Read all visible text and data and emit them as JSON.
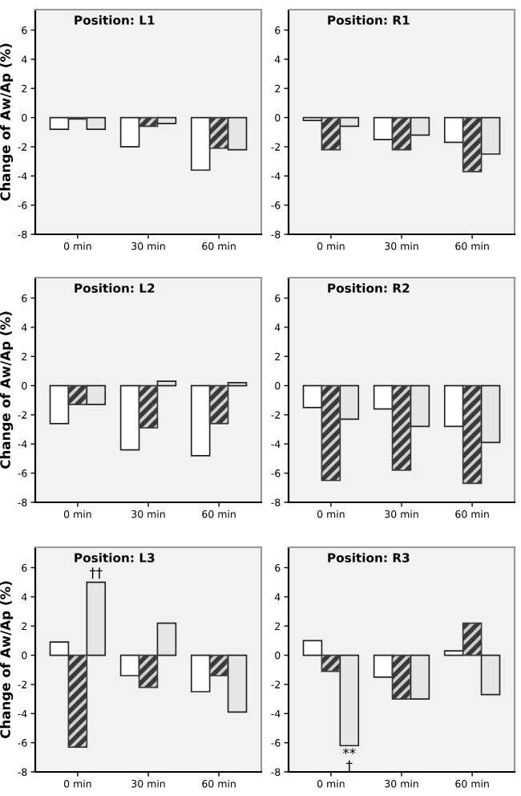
{
  "chart_data": [
    {
      "type": "bar",
      "title": "Position: L1",
      "ylabel": "Change of Aw/Ap (%)",
      "categories": [
        "0 min",
        "30 min",
        "60 min"
      ],
      "ylim": [
        -8,
        7.4
      ],
      "yticks": [
        -8,
        -6,
        -4,
        -2,
        0,
        2,
        4,
        6
      ],
      "grid": false,
      "series": [
        {
          "color": "#ffffff",
          "values": [
            -0.8,
            -2.0,
            -3.6
          ]
        },
        {
          "color": "#3a3a3a",
          "values": [
            -0.1,
            -0.6,
            -2.1
          ]
        },
        {
          "color": "#e6e6e6",
          "values": [
            -0.8,
            -0.4,
            -2.2
          ]
        }
      ]
    },
    {
      "type": "bar",
      "title": "Position: R1",
      "categories": [
        "0 min",
        "30 min",
        "60 min"
      ],
      "ylim": [
        -8,
        7.4
      ],
      "yticks": [
        -8,
        -6,
        -4,
        -2,
        0,
        2,
        4,
        6
      ],
      "grid": false,
      "series": [
        {
          "color": "#ffffff",
          "values": [
            -0.2,
            -1.5,
            -1.7
          ]
        },
        {
          "color": "#3a3a3a",
          "values": [
            -2.2,
            -2.2,
            -3.7
          ]
        },
        {
          "color": "#e6e6e6",
          "values": [
            -0.6,
            -1.2,
            -2.5
          ]
        }
      ]
    },
    {
      "type": "bar",
      "title": "Position: L2",
      "ylabel": "Change of Aw/Ap (%)",
      "categories": [
        "0 min",
        "30 min",
        "60 min"
      ],
      "ylim": [
        -8,
        7.4
      ],
      "yticks": [
        -8,
        -6,
        -4,
        -2,
        0,
        2,
        4,
        6
      ],
      "grid": false,
      "series": [
        {
          "color": "#ffffff",
          "values": [
            -2.6,
            -4.4,
            -4.8
          ]
        },
        {
          "color": "#3a3a3a",
          "values": [
            -1.3,
            -2.9,
            -2.6
          ]
        },
        {
          "color": "#e6e6e6",
          "values": [
            -1.3,
            0.3,
            0.2
          ]
        }
      ]
    },
    {
      "type": "bar",
      "title": "Position: R2",
      "categories": [
        "0 min",
        "30 min",
        "60 min"
      ],
      "ylim": [
        -8,
        7.4
      ],
      "yticks": [
        -8,
        -6,
        -4,
        -2,
        0,
        2,
        4,
        6
      ],
      "grid": false,
      "series": [
        {
          "color": "#ffffff",
          "values": [
            -1.5,
            -1.6,
            -2.8
          ]
        },
        {
          "color": "#3a3a3a",
          "values": [
            -6.5,
            -5.8,
            -6.7
          ]
        },
        {
          "color": "#e6e6e6",
          "values": [
            -2.3,
            -2.8,
            -3.9
          ]
        }
      ]
    },
    {
      "type": "bar",
      "title": "Position: L3",
      "ylabel": "Change of Aw/Ap (%)",
      "categories": [
        "0 min",
        "30 min",
        "60 min"
      ],
      "ylim": [
        -8,
        7.4
      ],
      "yticks": [
        -8,
        -6,
        -4,
        -2,
        0,
        2,
        4,
        6
      ],
      "grid": false,
      "annotations": [
        "††"
      ],
      "series": [
        {
          "color": "#ffffff",
          "values": [
            0.9,
            -1.4,
            -2.5
          ]
        },
        {
          "color": "#3a3a3a",
          "values": [
            -6.3,
            -2.2,
            -1.4
          ]
        },
        {
          "color": "#e6e6e6",
          "values": [
            5.0,
            2.2,
            -3.9
          ]
        }
      ]
    },
    {
      "type": "bar",
      "title": "Position: R3",
      "categories": [
        "0 min",
        "30 min",
        "60 min"
      ],
      "ylim": [
        -8,
        7.4
      ],
      "yticks": [
        -8,
        -6,
        -4,
        -2,
        0,
        2,
        4,
        6
      ],
      "grid": false,
      "annotations": [
        "**\n†"
      ],
      "series": [
        {
          "color": "#ffffff",
          "values": [
            1.0,
            -1.5,
            0.3
          ]
        },
        {
          "color": "#3a3a3a",
          "values": [
            -1.1,
            -3.0,
            2.2
          ]
        },
        {
          "color": "#e6e6e6",
          "values": [
            -6.2,
            -3.0,
            -2.7
          ]
        }
      ]
    }
  ]
}
